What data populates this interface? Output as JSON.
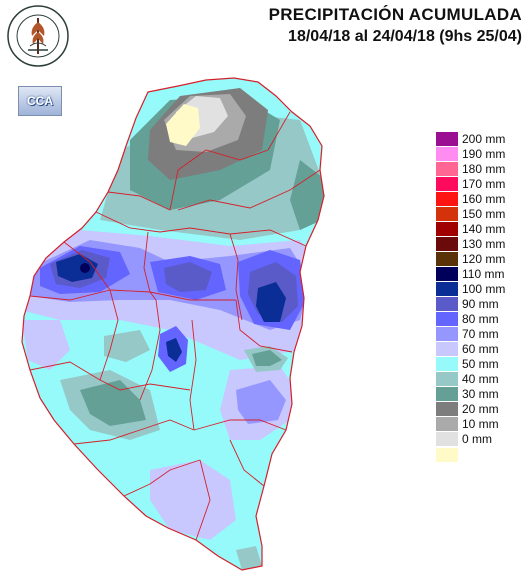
{
  "header": {
    "title": "PRECIPITACIÓN ACUMULADA",
    "period": "18/04/18 al 24/04/18 (9hs 25/04)"
  },
  "logos": {
    "bolsa": {
      "icon": "bolsa-de-cereales-seal-icon",
      "text_top": "BOLSA DE CEREALES",
      "text_bottom": "DE ENTRE RIOS"
    },
    "cca": {
      "icon": "cca-logo-icon",
      "text": "CCA"
    }
  },
  "legend": {
    "items": [
      {
        "label": "200 mm",
        "color": "#9b0f92"
      },
      {
        "label": "190 mm",
        "color": "#ff8cf0"
      },
      {
        "label": "180 mm",
        "color": "#ff6694"
      },
      {
        "label": "170 mm",
        "color": "#ff0a5c"
      },
      {
        "label": "160 mm",
        "color": "#ff1414"
      },
      {
        "label": "150 mm",
        "color": "#d4320a"
      },
      {
        "label": "140 mm",
        "color": "#a00000"
      },
      {
        "label": "130 mm",
        "color": "#6a0a0a"
      },
      {
        "label": "120 mm",
        "color": "#5a3208"
      },
      {
        "label": "110 mm",
        "color": "#00005a"
      },
      {
        "label": "100 mm",
        "color": "#0a2d96"
      },
      {
        "label": "90 mm",
        "color": "#5a5ac8"
      },
      {
        "label": "80 mm",
        "color": "#6464ff"
      },
      {
        "label": "70 mm",
        "color": "#9696ff"
      },
      {
        "label": "60 mm",
        "color": "#c8c8ff"
      },
      {
        "label": "50 mm",
        "color": "#96fafa"
      },
      {
        "label": "40 mm",
        "color": "#96c8c8"
      },
      {
        "label": "30 mm",
        "color": "#64a096"
      },
      {
        "label": "20 mm",
        "color": "#7d7d7d"
      },
      {
        "label": "10 mm",
        "color": "#aaaaaa"
      },
      {
        "label": "0 mm",
        "color": "#e1e1e1"
      },
      {
        "label": "",
        "color": "#fffac8"
      }
    ]
  },
  "map_colors": {
    "border": "#d4202a",
    "outline": "#d4202a"
  }
}
